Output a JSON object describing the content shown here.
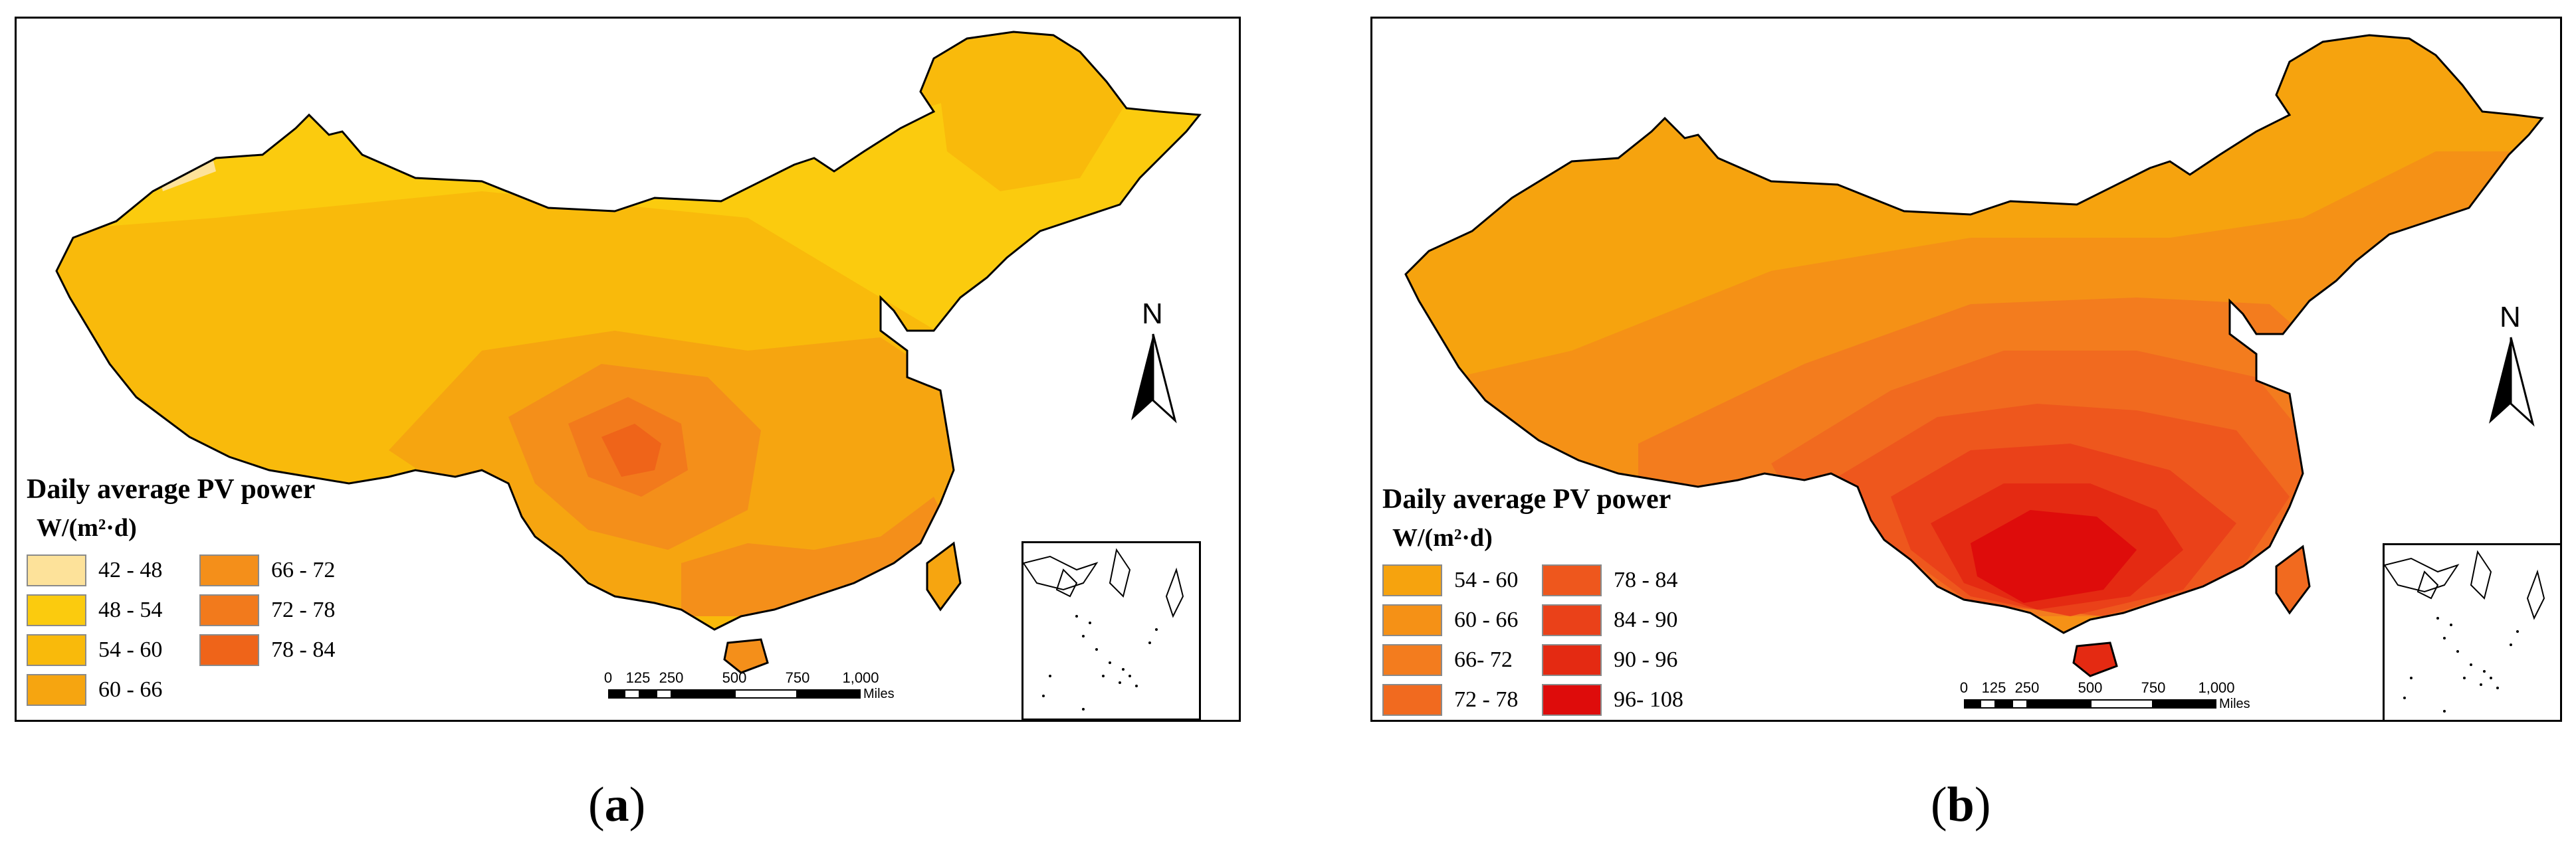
{
  "panels": [
    {
      "id": "a",
      "legend": {
        "title": "Daily average PV power",
        "unit": "W/(m²·d)",
        "items": [
          {
            "label": "42 - 48",
            "color": "#fde29a"
          },
          {
            "label": "48 - 54",
            "color": "#fbcb0e"
          },
          {
            "label": "54 - 60",
            "color": "#f9ba0b"
          },
          {
            "label": "60 - 66",
            "color": "#f6a510"
          },
          {
            "label": "66 - 72",
            "color": "#f48f1a"
          },
          {
            "label": "72 - 78",
            "color": "#f27a1c"
          },
          {
            "label": "78 - 84",
            "color": "#ef6419"
          }
        ]
      },
      "scale_bar": {
        "ticks": [
          "0",
          "125",
          "250",
          "500",
          "750",
          "1,000"
        ],
        "unit": "Miles"
      },
      "north_label": "N",
      "caption_letter": "a"
    },
    {
      "id": "b",
      "legend": {
        "title": "Daily average PV power",
        "unit": "W/(m²·d)",
        "items": [
          {
            "label": "54 - 60",
            "color": "#f6a30e"
          },
          {
            "label": "60 - 66",
            "color": "#f59116"
          },
          {
            "label": "66- 72",
            "color": "#f37c1e"
          },
          {
            "label": "72 - 78",
            "color": "#f16a1f"
          },
          {
            "label": "78 - 84",
            "color": "#ee571d"
          },
          {
            "label": "84 - 90",
            "color": "#ea4119"
          },
          {
            "label": "90 - 96",
            "color": "#e42a12"
          },
          {
            "label": "96- 108",
            "color": "#de0c0b"
          }
        ]
      },
      "scale_bar": {
        "ticks": [
          "0",
          "125",
          "250",
          "500",
          "750",
          "1,000"
        ],
        "unit": "Miles"
      },
      "north_label": "N",
      "caption_letter": "b"
    }
  ]
}
